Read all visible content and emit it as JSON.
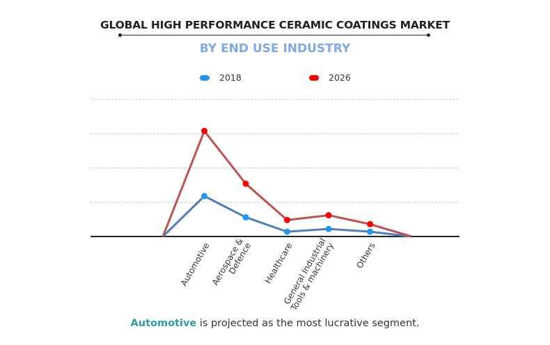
{
  "chart_data": {
    "type": "line",
    "title": "GLOBAL HIGH PERFORMANCE CERAMIC COATINGS MARKET",
    "subtitle": "BY END USE INDUSTRY",
    "categories": [
      "",
      "Automotive",
      "Aerospace & Defence",
      "Healthcare",
      "General Industrial Tools & machinery",
      "Others",
      ""
    ],
    "category_lines": [
      [],
      [
        "Automotive"
      ],
      [
        "Aerospace &",
        "Defence"
      ],
      [
        "Healthcare"
      ],
      [
        "General Industrial",
        "Tools & machinery"
      ],
      [
        "Others"
      ],
      []
    ],
    "series": [
      {
        "name": "2018",
        "values": [
          0,
          1.18,
          0.56,
          0.14,
          0.22,
          0.14,
          0
        ],
        "line_color": "#4a7ebf",
        "marker_color": "#2196f3"
      },
      {
        "name": "2026",
        "values": [
          0,
          3.08,
          1.54,
          0.48,
          0.62,
          0.36,
          0
        ],
        "line_color": "#c0504d",
        "marker_color": "#ff0000"
      }
    ],
    "ylim": [
      0,
      4
    ],
    "grid": true,
    "y_tick_labels": false,
    "legend_position": "top"
  },
  "footer": {
    "highlight": "Automotive",
    "text": " is projected as the most lucrative segment.",
    "highlight_color": "#2e9aa8"
  }
}
